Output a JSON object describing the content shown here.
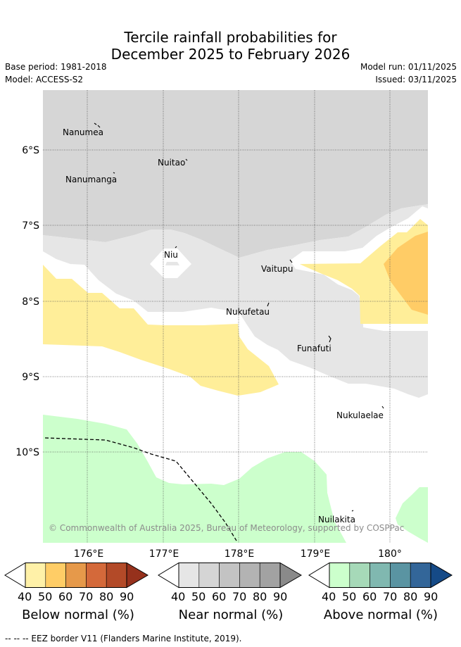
{
  "title": {
    "line1": "Tercile rainfall probabilities for",
    "line2": "December 2025 to February 2026"
  },
  "meta": {
    "base_period": "Base period: 1981-2018",
    "model": "Model: ACCESS-S2",
    "model_run": "Model run: 01/11/2025",
    "issued": "Issued: 03/11/2025"
  },
  "map": {
    "lon_labels": [
      "176°E",
      "177°E",
      "178°E",
      "179°E",
      "180°"
    ],
    "lat_labels": [
      "6°S",
      "7°S",
      "8°S",
      "9°S",
      "10°S"
    ],
    "lon_range": [
      175.4,
      180.5
    ],
    "lat_range": [
      -5.15,
      -11.15
    ],
    "places": [
      {
        "name": "Nanumea"
      },
      {
        "name": "Nuitao"
      },
      {
        "name": "Nanumanga"
      },
      {
        "name": "Niu"
      },
      {
        "name": "Vaitupu"
      },
      {
        "name": "Nukufetau"
      },
      {
        "name": "Funafuti"
      },
      {
        "name": "Nukulaelae"
      },
      {
        "name": "Nuilakita"
      }
    ],
    "copyright": "© Commonwealth of Australia 2025, Bureau of Meteorology, supported by COSPPac"
  },
  "colorbars": [
    {
      "title": "Below normal (%)",
      "ticks": [
        "40",
        "50",
        "60",
        "70",
        "80",
        "90"
      ],
      "colors": [
        "#fff1a8",
        "#ffcd66",
        "#e6994a",
        "#d4693a",
        "#b34a28",
        "#96311c"
      ]
    },
    {
      "title": "Near normal (%)",
      "ticks": [
        "40",
        "50",
        "60",
        "70",
        "80",
        "90"
      ],
      "colors": [
        "#e6e6e6",
        "#d5d5d5",
        "#c3c3c3",
        "#b3b3b3",
        "#a2a2a2",
        "#8a8a8a"
      ]
    },
    {
      "title": "Above normal (%)",
      "ticks": [
        "40",
        "50",
        "60",
        "70",
        "80",
        "90"
      ],
      "colors": [
        "#ccffcc",
        "#a6d9b8",
        "#80b8b0",
        "#5a94a2",
        "#336699",
        "#154a87"
      ]
    }
  ],
  "colors": {
    "near_50": "#d6d6d6",
    "near_40": "#e6e6e6",
    "below_40": "#ffee99",
    "below_50": "#ffcc66",
    "above_40": "#ccffcc"
  },
  "footer": "--  --  -- EEZ border V11 (Flanders Marine Institute, 2019)."
}
